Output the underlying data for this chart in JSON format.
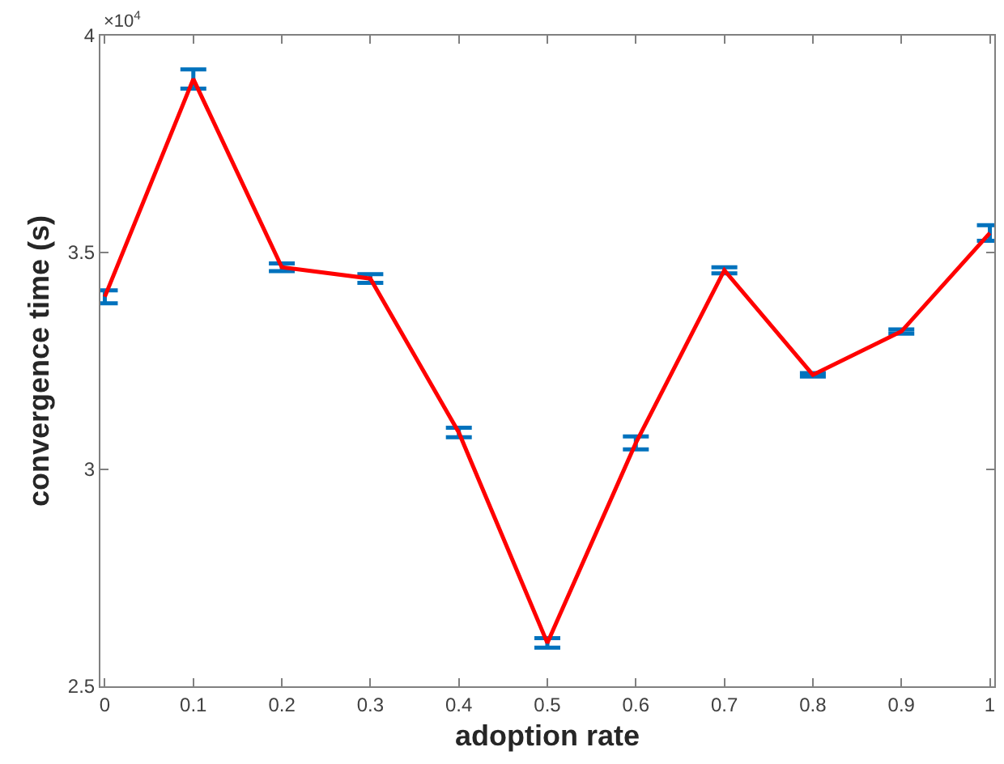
{
  "chart_data": {
    "type": "line",
    "xlabel": "adoption rate",
    "ylabel": "convergence time (s)",
    "x": [
      0,
      0.1,
      0.2,
      0.3,
      0.4,
      0.5,
      0.6,
      0.7,
      0.8,
      0.9,
      1
    ],
    "series": [
      {
        "color": "#ff0000",
        "values": [
          3.398,
          3.9,
          3.466,
          3.44,
          3.085,
          2.6,
          3.061,
          3.459,
          3.218,
          3.318,
          3.545
        ],
        "errors": [
          0.015,
          0.022,
          0.009,
          0.01,
          0.011,
          0.011,
          0.015,
          0.007,
          0.004,
          0.005,
          0.018
        ]
      }
    ],
    "xlim": [
      -0.005,
      1.005
    ],
    "ylim": [
      2.5,
      4
    ],
    "xticks": [
      0,
      0.1,
      0.2,
      0.3,
      0.4,
      0.5,
      0.6,
      0.7,
      0.8,
      0.9,
      1
    ],
    "yticks": [
      2.5,
      3,
      3.5,
      4
    ],
    "annotations": [
      "×10$^{4}$"
    ],
    "legend": false,
    "marker": "none",
    "line_style": "solid"
  }
}
